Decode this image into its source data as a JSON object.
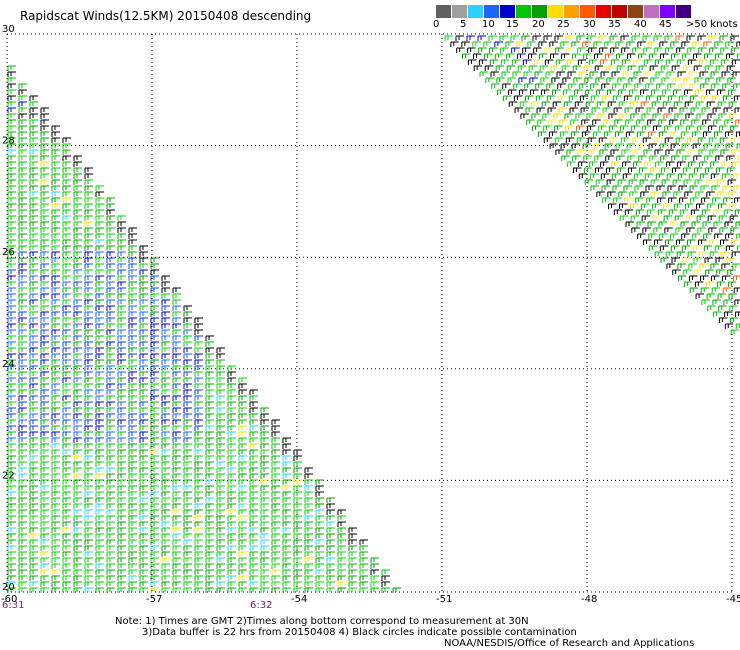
{
  "title": "Rapidscat Winds(12.5KM) 20150408 descending",
  "legend": {
    "colors": [
      "#606060",
      "#a0a0a0",
      "#2ad0ff",
      "#1e64ff",
      "#0000c8",
      "#00c800",
      "#00a000",
      "#ffdc00",
      "#ffa000",
      "#ff5a00",
      "#e80000",
      "#c00000",
      "#8b4513",
      "#c070c0",
      "#8000ff",
      "#400080"
    ],
    "labels": [
      "0",
      "5",
      "10",
      "15",
      "20",
      "25",
      "30",
      "35",
      "40",
      "45",
      ">50 knots"
    ]
  },
  "map": {
    "lat_labels": [
      "30",
      "28",
      "26",
      "24",
      "22",
      "20"
    ],
    "lon_labels": [
      "-60",
      "-57",
      "-54",
      "-51",
      "-48",
      "-45"
    ],
    "lat_values": [
      30,
      28,
      26,
      24,
      22,
      20
    ],
    "lon_values": [
      -60,
      -57,
      -54,
      -51,
      -48,
      -45
    ]
  },
  "times": {
    "left": "6:31",
    "right": "6:32"
  },
  "notes": {
    "line1": "Note: 1) Times are GMT 2)Times along bottom correspond to measurement at 30N",
    "line2": "3)Data buffer is 22 hrs from 20150408 4) Black circles indicate possible contamination",
    "line3": "NOAA/NESDIS/Office of Research and Applications"
  }
}
